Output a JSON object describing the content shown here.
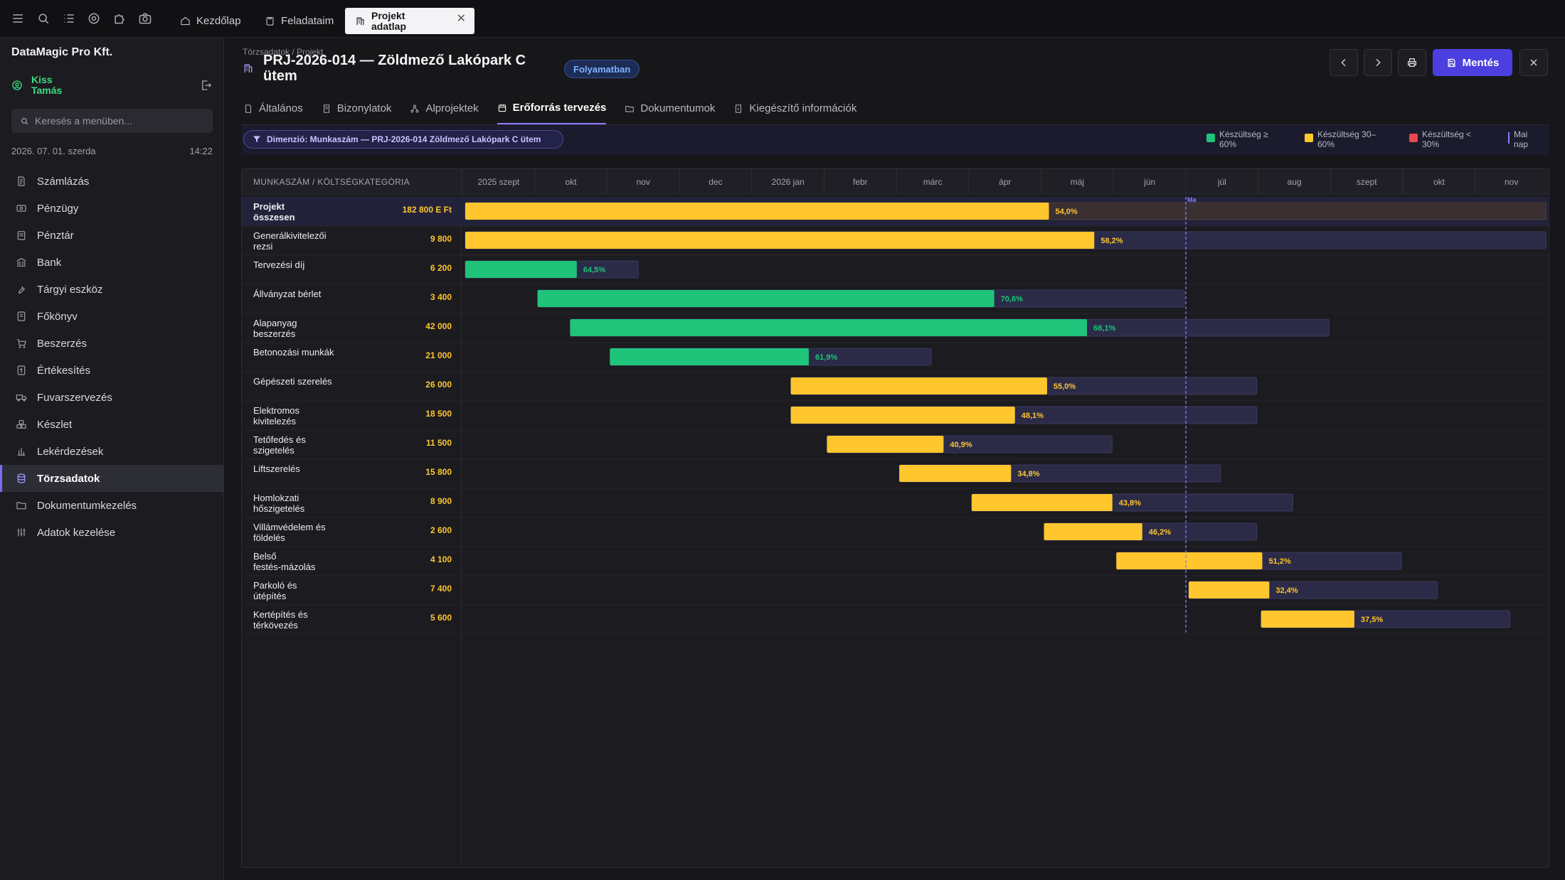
{
  "topbar": {
    "icons": [
      "menu-icon",
      "search-icon",
      "list-icon",
      "gear-icon",
      "puzzle-icon",
      "camera-icon"
    ],
    "tabs": [
      {
        "label": "Kezdőlap",
        "icon": "home-icon"
      },
      {
        "label": "Feladataim",
        "icon": "clipboard-icon"
      },
      {
        "label": "Projekt adatlap",
        "icon": "building-icon",
        "active": true
      }
    ]
  },
  "sidebar": {
    "company": "DataMagic Pro Kft.",
    "user": "Kiss Tamás",
    "search_placeholder": "Keresés a menüben...",
    "date": "2026. 07. 01. szerda",
    "time": "14:22",
    "items": [
      {
        "label": "Számlázás",
        "icon": "invoice-icon"
      },
      {
        "label": "Pénzügy",
        "icon": "money-icon"
      },
      {
        "label": "Pénztár",
        "icon": "cashbox-icon"
      },
      {
        "label": "Bank",
        "icon": "bank-icon"
      },
      {
        "label": "Tárgyi eszköz",
        "icon": "wrench-icon"
      },
      {
        "label": "Főkönyv",
        "icon": "ledger-icon"
      },
      {
        "label": "Beszerzés",
        "icon": "cart-icon"
      },
      {
        "label": "Értékesítés",
        "icon": "sales-icon"
      },
      {
        "label": "Fuvarszervezés",
        "icon": "truck-icon"
      },
      {
        "label": "Készlet",
        "icon": "boxes-icon"
      },
      {
        "label": "Lekérdezések",
        "icon": "bar-chart-icon"
      },
      {
        "label": "Törzsadatok",
        "icon": "database-icon",
        "active": true
      },
      {
        "label": "Dokumentumkezelés",
        "icon": "folder-icon"
      },
      {
        "label": "Adatok kezelése",
        "icon": "sliders-icon"
      }
    ]
  },
  "header": {
    "breadcrumb": "Törzsadatok / Projekt",
    "title": "PRJ-2026-014 — Zöldmező Lakópark C ütem",
    "status": "Folyamatban",
    "save_label": "Mentés"
  },
  "content_tabs": [
    {
      "label": "Általános",
      "icon": "doc-icon"
    },
    {
      "label": "Bizonylatok",
      "icon": "receipt-icon"
    },
    {
      "label": "Alprojektek",
      "icon": "hierarchy-icon"
    },
    {
      "label": "Erőforrás tervezés",
      "icon": "calendar-icon",
      "active": true
    },
    {
      "label": "Dokumentumok",
      "icon": "folder-icon"
    },
    {
      "label": "Kiegészítő információk",
      "icon": "info-doc-icon"
    }
  ],
  "filter": {
    "dimension": "Dimenzió: Munkaszám — PRJ-2026-014 Zöldmező Lakópark C ütem",
    "legend": [
      {
        "label": "Készültség ≥ 60%",
        "color": "#1fc47a"
      },
      {
        "label": "Készültség 30–60%",
        "color": "#ffc62e"
      },
      {
        "label": "Készültség < 30%",
        "color": "#e5484d"
      },
      {
        "label": "Mai nap",
        "color": "#8a7cff"
      }
    ]
  },
  "gantt": {
    "column_header": "MUNKASZÁM / KÖLTSÉGKATEGÓRIA",
    "months": [
      "2025 szept",
      "okt",
      "nov",
      "dec",
      "2026 jan",
      "febr",
      "márc",
      "ápr",
      "máj",
      "jún",
      "júl",
      "aug",
      "szept",
      "okt",
      "nov"
    ],
    "today_label": "Ma",
    "today_month_offset": 10.0,
    "rows": [
      {
        "name": "Projekt összesen",
        "amount": "182 800 E Ft",
        "start": 0.0,
        "end": 15.0,
        "progress": 54.0,
        "progress_label": "54,0%",
        "total": true
      },
      {
        "name": "Generálkivitelezői rezsi",
        "amount": "9 800",
        "start": 0.0,
        "end": 15.0,
        "progress": 58.2,
        "progress_label": "58,2%"
      },
      {
        "name": "Tervezési díj",
        "amount": "6 200",
        "start": 0.0,
        "end": 2.45,
        "progress": 64.5,
        "progress_label": "64,5%"
      },
      {
        "name": "Állványzat bérlet",
        "amount": "3 400",
        "start": 1.0,
        "end": 10.0,
        "progress": 70.6,
        "progress_label": "70,6%"
      },
      {
        "name": "Alapanyag beszerzés",
        "amount": "42 000",
        "start": 1.45,
        "end": 12.0,
        "progress": 68.1,
        "progress_label": "68,1%"
      },
      {
        "name": "Betonozási munkák",
        "amount": "21 000",
        "start": 2.0,
        "end": 6.5,
        "progress": 61.9,
        "progress_label": "61,9%"
      },
      {
        "name": "Gépészeti szerelés",
        "amount": "26 000",
        "start": 4.5,
        "end": 11.0,
        "progress": 55.0,
        "progress_label": "55,0%"
      },
      {
        "name": "Elektromos kivitelezés",
        "amount": "18 500",
        "start": 4.5,
        "end": 11.0,
        "progress": 48.1,
        "progress_label": "48,1%"
      },
      {
        "name": "Tetőfedés és szigetelés",
        "amount": "11 500",
        "start": 5.0,
        "end": 9.0,
        "progress": 40.9,
        "progress_label": "40,9%"
      },
      {
        "name": "Liftszerelés",
        "amount": "15 800",
        "start": 6.0,
        "end": 10.5,
        "progress": 34.8,
        "progress_label": "34,8%"
      },
      {
        "name": "Homlokzati hőszigetelés",
        "amount": "8 900",
        "start": 7.0,
        "end": 11.5,
        "progress": 43.8,
        "progress_label": "43,8%"
      },
      {
        "name": "Villámvédelem és földelés",
        "amount": "2 600",
        "start": 8.0,
        "end": 11.0,
        "progress": 46.2,
        "progress_label": "46,2%"
      },
      {
        "name": "Belső festés-mázolás",
        "amount": "4 100",
        "start": 9.0,
        "end": 13.0,
        "progress": 51.2,
        "progress_label": "51,2%"
      },
      {
        "name": "Parkoló és útépítés",
        "amount": "7 400",
        "start": 10.0,
        "end": 13.5,
        "progress": 32.4,
        "progress_label": "32,4%"
      },
      {
        "name": "Kertépítés és térkövezés",
        "amount": "5 600",
        "start": 11.0,
        "end": 14.5,
        "progress": 37.5,
        "progress_label": "37,5%"
      }
    ]
  }
}
